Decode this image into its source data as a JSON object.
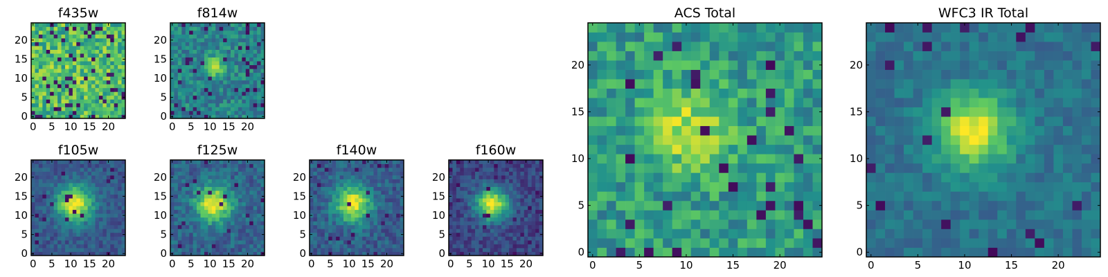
{
  "chart_data": {
    "type": "heatmap",
    "description_units": "pixel index",
    "colormap": "viridis",
    "colormap_stops": [
      "#440154",
      "#3b528b",
      "#21918c",
      "#5ec962",
      "#fde725"
    ],
    "panels": [
      {
        "key": "f435w",
        "title": "f435w",
        "xlim": [
          0,
          24
        ],
        "ylim": [
          0,
          24
        ],
        "xticks": [
          "0",
          "5",
          "10",
          "15",
          "20"
        ],
        "yticks": [
          "0",
          "5",
          "10",
          "15",
          "20"
        ],
        "peak": [
          10,
          14
        ],
        "sigma": 4,
        "amp": 0.05,
        "base": 0.68,
        "noise": 0.22,
        "dark": 0.1,
        "seed": 11
      },
      {
        "key": "f814w",
        "title": "f814w",
        "xlim": [
          0,
          24
        ],
        "ylim": [
          0,
          24
        ],
        "xticks": [
          "0",
          "5",
          "10",
          "15",
          "20"
        ],
        "yticks": [
          "0",
          "5",
          "10",
          "15",
          "20"
        ],
        "peak": [
          11,
          13
        ],
        "sigma": 1.8,
        "amp": 0.5,
        "base": 0.45,
        "noise": 0.15,
        "dark": 0.07,
        "seed": 23
      },
      {
        "key": "f105w",
        "title": "f105w",
        "xlim": [
          0,
          24
        ],
        "ylim": [
          0,
          24
        ],
        "xticks": [
          "0",
          "5",
          "10",
          "15",
          "20"
        ],
        "yticks": [
          "0",
          "5",
          "10",
          "15",
          "20"
        ],
        "peak": [
          11,
          13
        ],
        "sigma": 3.3,
        "amp": 0.72,
        "base": 0.28,
        "noise": 0.1,
        "dark": 0.03,
        "seed": 37
      },
      {
        "key": "f125w",
        "title": "f125w",
        "xlim": [
          0,
          24
        ],
        "ylim": [
          0,
          24
        ],
        "xticks": [
          "0",
          "5",
          "10",
          "15",
          "20"
        ],
        "yticks": [
          "0",
          "5",
          "10",
          "15",
          "20"
        ],
        "peak": [
          11,
          13
        ],
        "sigma": 3.3,
        "amp": 0.68,
        "base": 0.32,
        "noise": 0.12,
        "dark": 0.04,
        "seed": 41
      },
      {
        "key": "f140w",
        "title": "f140w",
        "xlim": [
          0,
          24
        ],
        "ylim": [
          0,
          24
        ],
        "xticks": [
          "0",
          "5",
          "10",
          "15",
          "20"
        ],
        "yticks": [
          "0",
          "5",
          "10",
          "15",
          "20"
        ],
        "peak": [
          11,
          13
        ],
        "sigma": 3.3,
        "amp": 0.68,
        "base": 0.3,
        "noise": 0.12,
        "dark": 0.04,
        "seed": 53
      },
      {
        "key": "f160w",
        "title": "f160w",
        "xlim": [
          0,
          24
        ],
        "ylim": [
          0,
          24
        ],
        "xticks": [
          "0",
          "5",
          "10",
          "15",
          "20"
        ],
        "yticks": [
          "0",
          "5",
          "10",
          "15",
          "20"
        ],
        "peak": [
          11,
          13
        ],
        "sigma": 3.0,
        "amp": 0.75,
        "base": 0.22,
        "noise": 0.1,
        "dark": 0.04,
        "seed": 67
      },
      {
        "key": "acs-total",
        "title": "ACS Total",
        "xlim": [
          0,
          24
        ],
        "ylim": [
          0,
          24
        ],
        "xticks": [
          "0",
          "5",
          "10",
          "15",
          "20"
        ],
        "yticks": [
          "0",
          "5",
          "10",
          "15",
          "20"
        ],
        "peak": [
          10,
          13
        ],
        "sigma": 3.0,
        "amp": 0.35,
        "base": 0.55,
        "noise": 0.18,
        "dark": 0.05,
        "seed": 79
      },
      {
        "key": "wfc3-ir-total",
        "title": "WFC3 IR Total",
        "xlim": [
          0,
          24
        ],
        "ylim": [
          0,
          24
        ],
        "xticks": [
          "0",
          "5",
          "10",
          "15",
          "20"
        ],
        "yticks": [
          "0",
          "5",
          "10",
          "15",
          "20"
        ],
        "peak": [
          11,
          13
        ],
        "sigma": 2.8,
        "amp": 0.6,
        "base": 0.38,
        "noise": 0.09,
        "dark": 0.035,
        "seed": 97
      }
    ]
  }
}
